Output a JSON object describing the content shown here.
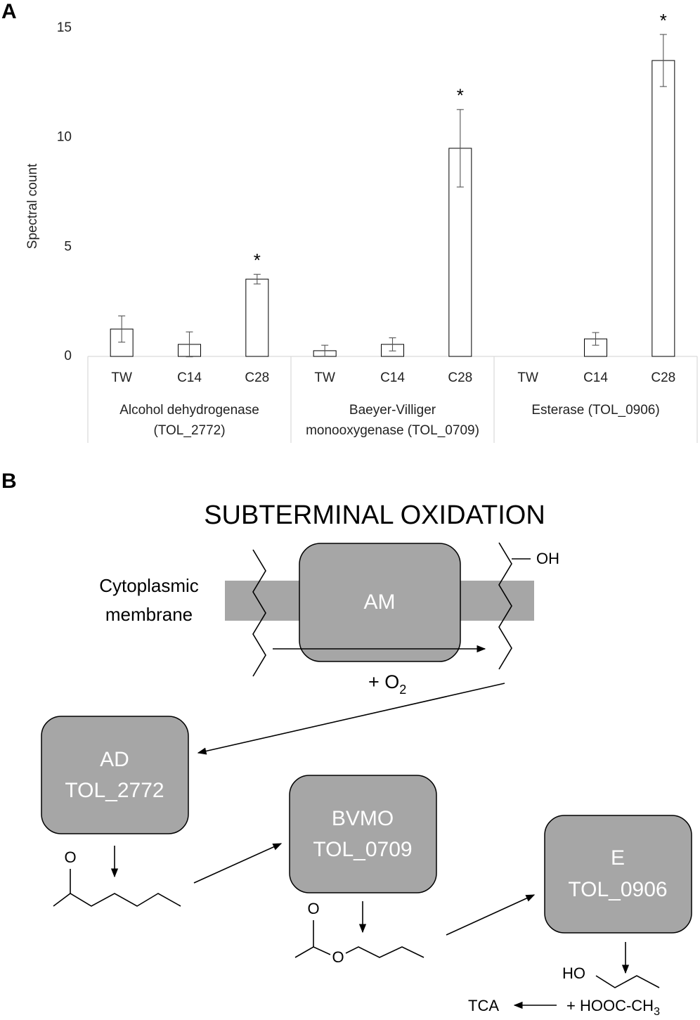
{
  "panels": [
    "A",
    "B"
  ],
  "chart_data": {
    "type": "bar",
    "ylabel": "Spectral count",
    "ylim": [
      0,
      15
    ],
    "yticks": [
      0,
      5,
      10,
      15
    ],
    "categories": [
      "TW",
      "C14",
      "C28",
      "TW",
      "C14",
      "C28",
      "TW",
      "C14",
      "C28"
    ],
    "values": [
      1.25,
      0.55,
      3.53,
      0.26,
      0.55,
      9.51,
      0,
      0.8,
      13.52
    ],
    "errors": [
      0.6,
      0.57,
      0.22,
      0.25,
      0.3,
      1.77,
      0,
      0.29,
      1.19
    ],
    "color": "#ffffff",
    "groups": [
      {
        "lines": [
          "Alcohol dehydrogenase",
          "(TOL_2772)"
        ],
        "size": 3
      },
      {
        "lines": [
          "Baeyer-Villiger",
          "monooxygenase (TOL_0709)"
        ],
        "size": 3
      },
      {
        "lines": [
          "Esterase (TOL_0906)"
        ],
        "size": 3
      }
    ],
    "annotations": [
      {
        "text": "*",
        "bar": 2
      },
      {
        "text": "*",
        "bar": 5
      },
      {
        "text": "*",
        "bar": 8
      }
    ]
  },
  "diagram": {
    "title": "SUBTERMINAL OXIDATION",
    "membrane": [
      "Cytoplasmic",
      "membrane"
    ],
    "nodes": [
      {
        "lines": [
          "AM"
        ]
      },
      {
        "lines": [
          "AD",
          "TOL_2772"
        ]
      },
      {
        "lines": [
          "BVMO",
          "TOL_0709"
        ]
      },
      {
        "lines": [
          "E",
          "TOL_0906"
        ]
      }
    ],
    "oxygen": {
      "text": "+ O",
      "sub": "2"
    },
    "hydroxyl": "OH",
    "ketone_o": "O",
    "ester_o": [
      "O",
      "O"
    ],
    "alcohol": "HO",
    "acid": {
      "text": "+ HOOC-CH",
      "sub": "3"
    },
    "tca": "TCA"
  }
}
